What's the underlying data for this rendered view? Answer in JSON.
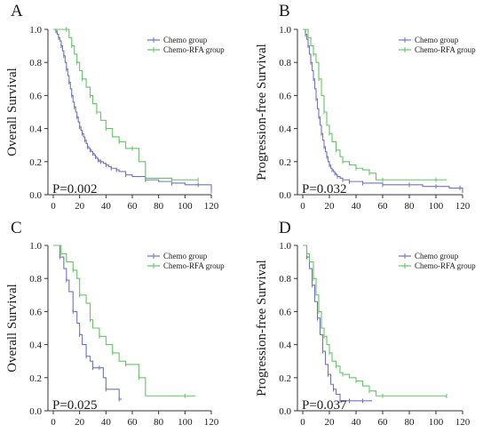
{
  "colors": {
    "chemo": "#6f74bf",
    "rfa": "#67c268",
    "axis": "#333333"
  },
  "chart_data": [
    {
      "type": "line",
      "panel": "A",
      "ylabel": "Overall Survival",
      "xlabel": "",
      "xlim": [
        0,
        120
      ],
      "ylim": [
        0,
        1
      ],
      "xticks": [
        0,
        20,
        40,
        60,
        80,
        100,
        120
      ],
      "yticks": [
        0.0,
        0.2,
        0.4,
        0.6,
        0.8,
        1.0
      ],
      "p_value": "P=0.002",
      "legend": [
        "Chemo group",
        "Chemo-RFA group"
      ],
      "series": [
        {
          "name": "Chemo group",
          "x": [
            0,
            2,
            3,
            4,
            5,
            6,
            7,
            8,
            9,
            10,
            11,
            12,
            13,
            14,
            15,
            16,
            17,
            18,
            19,
            20,
            21,
            22,
            23,
            24,
            25,
            26,
            27,
            28,
            29,
            30,
            31,
            32,
            33,
            34,
            35,
            36,
            38,
            40,
            42,
            44,
            46,
            48,
            50,
            55,
            60,
            70,
            80,
            90,
            100,
            110,
            118,
            120
          ],
          "y": [
            1.0,
            0.99,
            0.97,
            0.95,
            0.93,
            0.9,
            0.87,
            0.84,
            0.8,
            0.76,
            0.72,
            0.68,
            0.64,
            0.6,
            0.56,
            0.53,
            0.5,
            0.47,
            0.44,
            0.41,
            0.39,
            0.37,
            0.35,
            0.33,
            0.31,
            0.29,
            0.28,
            0.27,
            0.26,
            0.25,
            0.24,
            0.23,
            0.22,
            0.21,
            0.2,
            0.2,
            0.19,
            0.18,
            0.17,
            0.16,
            0.16,
            0.15,
            0.14,
            0.12,
            0.11,
            0.09,
            0.08,
            0.07,
            0.06,
            0.06,
            0.06,
            0.02
          ]
        },
        {
          "name": "Chemo-RFA group",
          "x": [
            0,
            10,
            12,
            14,
            16,
            18,
            20,
            22,
            25,
            28,
            30,
            33,
            36,
            40,
            45,
            50,
            55,
            60,
            65,
            70,
            80,
            90,
            100,
            110
          ],
          "y": [
            1.0,
            1.0,
            0.95,
            0.9,
            0.85,
            0.8,
            0.75,
            0.7,
            0.65,
            0.6,
            0.55,
            0.5,
            0.45,
            0.4,
            0.35,
            0.32,
            0.28,
            0.28,
            0.2,
            0.1,
            0.1,
            0.09,
            0.09,
            0.09
          ]
        }
      ]
    },
    {
      "type": "line",
      "panel": "B",
      "ylabel": "Progression-free Survival",
      "xlabel": "",
      "xlim": [
        0,
        120
      ],
      "ylim": [
        0,
        1
      ],
      "xticks": [
        0,
        20,
        40,
        60,
        80,
        100,
        120
      ],
      "yticks": [
        0.0,
        0.2,
        0.4,
        0.6,
        0.8,
        1.0
      ],
      "p_value": "P=0.032",
      "legend": [
        "Chemo group",
        "Chemo-RFA group"
      ],
      "series": [
        {
          "name": "Chemo group",
          "x": [
            0,
            2,
            3,
            4,
            5,
            6,
            7,
            8,
            9,
            10,
            11,
            12,
            13,
            14,
            15,
            16,
            17,
            18,
            19,
            20,
            21,
            22,
            23,
            24,
            25,
            26,
            28,
            30,
            32,
            35,
            40,
            45,
            50,
            60,
            70,
            80,
            90,
            100,
            110,
            118,
            120
          ],
          "y": [
            1.0,
            0.97,
            0.94,
            0.9,
            0.85,
            0.8,
            0.75,
            0.7,
            0.64,
            0.58,
            0.52,
            0.47,
            0.42,
            0.37,
            0.33,
            0.29,
            0.26,
            0.23,
            0.2,
            0.18,
            0.16,
            0.15,
            0.14,
            0.13,
            0.12,
            0.11,
            0.1,
            0.09,
            0.09,
            0.08,
            0.08,
            0.07,
            0.07,
            0.06,
            0.06,
            0.06,
            0.05,
            0.05,
            0.04,
            0.04,
            0.01
          ]
        },
        {
          "name": "Chemo-RFA group",
          "x": [
            0,
            4,
            6,
            8,
            10,
            12,
            14,
            16,
            18,
            20,
            22,
            25,
            28,
            30,
            35,
            40,
            45,
            50,
            55,
            60,
            80,
            100,
            108
          ],
          "y": [
            1.0,
            0.95,
            0.9,
            0.85,
            0.8,
            0.7,
            0.6,
            0.5,
            0.42,
            0.37,
            0.32,
            0.27,
            0.23,
            0.2,
            0.18,
            0.16,
            0.15,
            0.13,
            0.09,
            0.09,
            0.09,
            0.09,
            0.09
          ]
        }
      ]
    },
    {
      "type": "line",
      "panel": "C",
      "ylabel": "Overall Survival",
      "xlabel": "",
      "xlim": [
        0,
        120
      ],
      "ylim": [
        0,
        1
      ],
      "xticks": [
        0,
        20,
        40,
        60,
        80,
        100,
        120
      ],
      "yticks": [
        0.0,
        0.2,
        0.4,
        0.6,
        0.8,
        1.0
      ],
      "p_value": "P=0.025",
      "legend": [
        "Chemo group",
        "Chemo-RFA group"
      ],
      "series": [
        {
          "name": "Chemo group",
          "x": [
            0,
            5,
            8,
            10,
            12,
            15,
            18,
            20,
            22,
            25,
            28,
            30,
            33,
            35,
            38,
            40,
            45,
            50,
            52
          ],
          "y": [
            1.0,
            0.93,
            0.86,
            0.79,
            0.72,
            0.6,
            0.53,
            0.46,
            0.4,
            0.33,
            0.3,
            0.26,
            0.26,
            0.26,
            0.2,
            0.13,
            0.13,
            0.07,
            0.07
          ]
        },
        {
          "name": "Chemo-RFA group",
          "x": [
            0,
            6,
            10,
            15,
            18,
            20,
            25,
            28,
            30,
            35,
            40,
            45,
            50,
            55,
            60,
            65,
            70,
            100,
            108
          ],
          "y": [
            1.0,
            0.95,
            0.9,
            0.85,
            0.8,
            0.7,
            0.65,
            0.55,
            0.5,
            0.45,
            0.4,
            0.35,
            0.3,
            0.28,
            0.28,
            0.2,
            0.09,
            0.09,
            0.09
          ]
        }
      ]
    },
    {
      "type": "line",
      "panel": "D",
      "ylabel": "Progression-free Survival",
      "xlabel": "",
      "xlim": [
        0,
        120
      ],
      "ylim": [
        0,
        1
      ],
      "xticks": [
        0,
        20,
        40,
        60,
        80,
        100,
        120
      ],
      "yticks": [
        0.0,
        0.2,
        0.4,
        0.6,
        0.8,
        1.0
      ],
      "p_value": "P=0.037",
      "legend": [
        "Chemo group",
        "Chemo-RFA group"
      ],
      "series": [
        {
          "name": "Chemo group",
          "x": [
            0,
            3,
            5,
            7,
            9,
            11,
            13,
            15,
            17,
            19,
            21,
            23,
            25,
            28,
            30,
            35,
            40,
            45,
            52
          ],
          "y": [
            1.0,
            0.93,
            0.86,
            0.76,
            0.66,
            0.56,
            0.46,
            0.36,
            0.28,
            0.22,
            0.16,
            0.13,
            0.1,
            0.06,
            0.06,
            0.06,
            0.06,
            0.06,
            0.06
          ]
        },
        {
          "name": "Chemo-RFA group",
          "x": [
            0,
            3,
            5,
            8,
            10,
            12,
            14,
            16,
            18,
            20,
            22,
            25,
            28,
            30,
            35,
            40,
            45,
            50,
            55,
            60,
            100,
            108
          ],
          "y": [
            1.0,
            0.95,
            0.9,
            0.8,
            0.7,
            0.6,
            0.5,
            0.45,
            0.4,
            0.35,
            0.3,
            0.27,
            0.23,
            0.22,
            0.2,
            0.18,
            0.15,
            0.12,
            0.09,
            0.09,
            0.09,
            0.09
          ]
        }
      ]
    }
  ]
}
